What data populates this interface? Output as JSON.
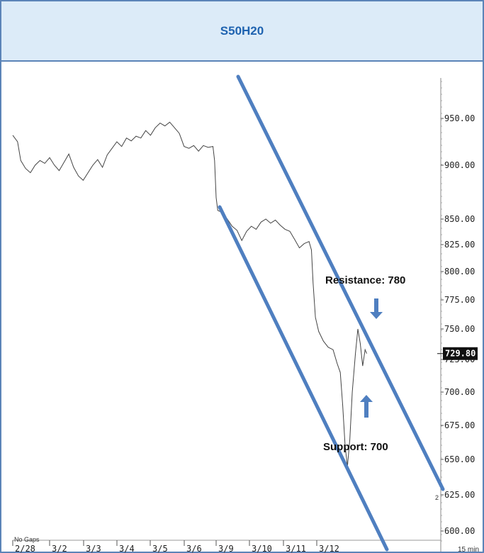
{
  "header": {
    "title": "S50H20"
  },
  "chart_data": {
    "type": "line",
    "title": "S50H20",
    "y_ticks": [
      "950.00",
      "900.00",
      "850.00",
      "825.00",
      "800.00",
      "775.00",
      "750.00",
      "725.00",
      "700.00",
      "675.00",
      "650.00",
      "625.00",
      "600.00"
    ],
    "x_ticks": [
      "2/28",
      "3/2",
      "3/3",
      "3/4",
      "3/5",
      "3/6",
      "3/9",
      "3/10",
      "3/11",
      "3/12"
    ],
    "last_price": "729.80",
    "interval_label": "15 min",
    "no_gaps_label": "No Gaps",
    "scale_marker": "2",
    "annotations": {
      "resistance": "Resistance: 780",
      "support": "Support: 700"
    },
    "series": [
      {
        "values": [
          [
            0,
            932
          ],
          [
            0.6,
            925
          ],
          [
            1.0,
            905
          ],
          [
            1.6,
            897
          ],
          [
            2.2,
            893
          ],
          [
            2.8,
            900
          ],
          [
            3.4,
            905
          ],
          [
            4.0,
            902
          ],
          [
            4.6,
            908
          ],
          [
            5.2,
            900
          ],
          [
            5.8,
            895
          ],
          [
            6.4,
            903
          ],
          [
            7.0,
            912
          ],
          [
            7.6,
            898
          ],
          [
            8.2,
            890
          ],
          [
            8.8,
            886
          ],
          [
            9.4,
            893
          ],
          [
            10.0,
            900
          ],
          [
            10.6,
            906
          ],
          [
            11.2,
            898
          ],
          [
            11.8,
            911
          ],
          [
            12.4,
            918
          ],
          [
            13.0,
            925
          ],
          [
            13.6,
            920
          ],
          [
            14.2,
            929
          ],
          [
            14.8,
            926
          ],
          [
            15.4,
            931
          ],
          [
            16.0,
            929
          ],
          [
            16.6,
            937
          ],
          [
            17.2,
            932
          ],
          [
            17.8,
            940
          ],
          [
            18.4,
            945
          ],
          [
            19.0,
            942
          ],
          [
            19.6,
            946
          ],
          [
            20.2,
            940
          ],
          [
            20.8,
            934
          ],
          [
            21.4,
            920
          ],
          [
            22.0,
            918
          ],
          [
            22.6,
            921
          ],
          [
            23.2,
            915
          ],
          [
            23.8,
            921
          ],
          [
            24.4,
            919
          ],
          [
            25.0,
            920
          ],
          [
            25.2,
            905
          ],
          [
            25.4,
            870
          ],
          [
            25.6,
            858
          ],
          [
            26.2,
            856
          ],
          [
            26.8,
            850
          ],
          [
            27.4,
            843
          ],
          [
            28.0,
            839
          ],
          [
            28.6,
            829
          ],
          [
            29.2,
            838
          ],
          [
            29.8,
            843
          ],
          [
            30.4,
            840
          ],
          [
            31.0,
            847
          ],
          [
            31.6,
            850
          ],
          [
            32.2,
            846
          ],
          [
            32.8,
            849
          ],
          [
            33.4,
            844
          ],
          [
            34.0,
            840
          ],
          [
            34.6,
            838
          ],
          [
            35.2,
            830
          ],
          [
            35.8,
            822
          ],
          [
            36.4,
            826
          ],
          [
            37.0,
            828
          ],
          [
            37.3,
            820
          ],
          [
            37.5,
            790
          ],
          [
            37.8,
            760
          ],
          [
            38.2,
            748
          ],
          [
            38.8,
            740
          ],
          [
            39.4,
            735
          ],
          [
            40.0,
            733
          ],
          [
            40.5,
            722
          ],
          [
            40.9,
            715
          ],
          [
            41.2,
            690
          ],
          [
            41.5,
            660
          ],
          [
            41.8,
            645
          ],
          [
            42.1,
            665
          ],
          [
            42.4,
            700
          ],
          [
            42.8,
            730
          ],
          [
            43.1,
            750
          ],
          [
            43.4,
            738
          ],
          [
            43.7,
            720
          ],
          [
            44.0,
            733
          ],
          [
            44.2,
            729.8
          ]
        ]
      }
    ]
  }
}
